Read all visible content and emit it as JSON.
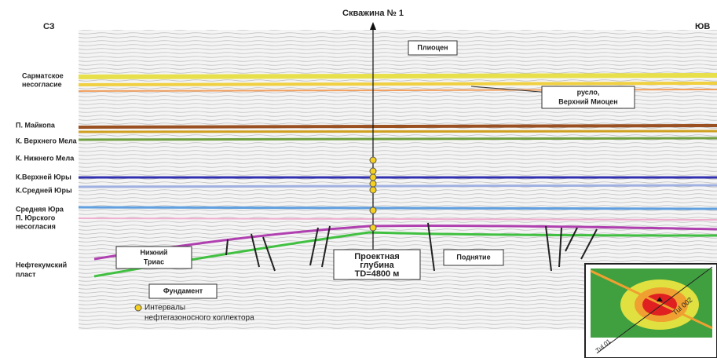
{
  "header": {
    "title": "Скважина № 1",
    "left": "СЗ",
    "right": "ЮВ"
  },
  "horizons": [
    {
      "lines": [
        "Сарматское",
        "несогласие"
      ]
    },
    {
      "lines": [
        "П. Майкопа"
      ]
    },
    {
      "lines": [
        "К. Верхнего Мела"
      ]
    },
    {
      "lines": [
        "К. Нижнего Мела"
      ]
    },
    {
      "lines": [
        "К.Верхней Юры"
      ]
    },
    {
      "lines": [
        "К.Средней Юры"
      ]
    },
    {
      "lines": [
        "Средняя Юра",
        "П. Юрского",
        "несогласия"
      ]
    },
    {
      "lines": [
        "Нефтекумский",
        "пласт"
      ]
    }
  ],
  "boxes": {
    "pliocene": {
      "lines": [
        "Плиоцен"
      ]
    },
    "channel": {
      "lines": [
        "русло,",
        "Верхний Миоцен"
      ]
    },
    "triassic": {
      "lines": [
        "Нижний",
        "Триас"
      ]
    },
    "target": {
      "lines": [
        "Проектная",
        "глубина",
        "TD=4800 м"
      ]
    },
    "uplift": {
      "lines": [
        "Поднятие"
      ]
    },
    "basement": {
      "lines": [
        "Фундамент"
      ]
    }
  },
  "legend": {
    "lines": [
      "Интервалы",
      "нефтегазоносного коллектора"
    ]
  },
  "inset": {
    "labels": [
      "Tul 002",
      "Tul 01"
    ]
  }
}
